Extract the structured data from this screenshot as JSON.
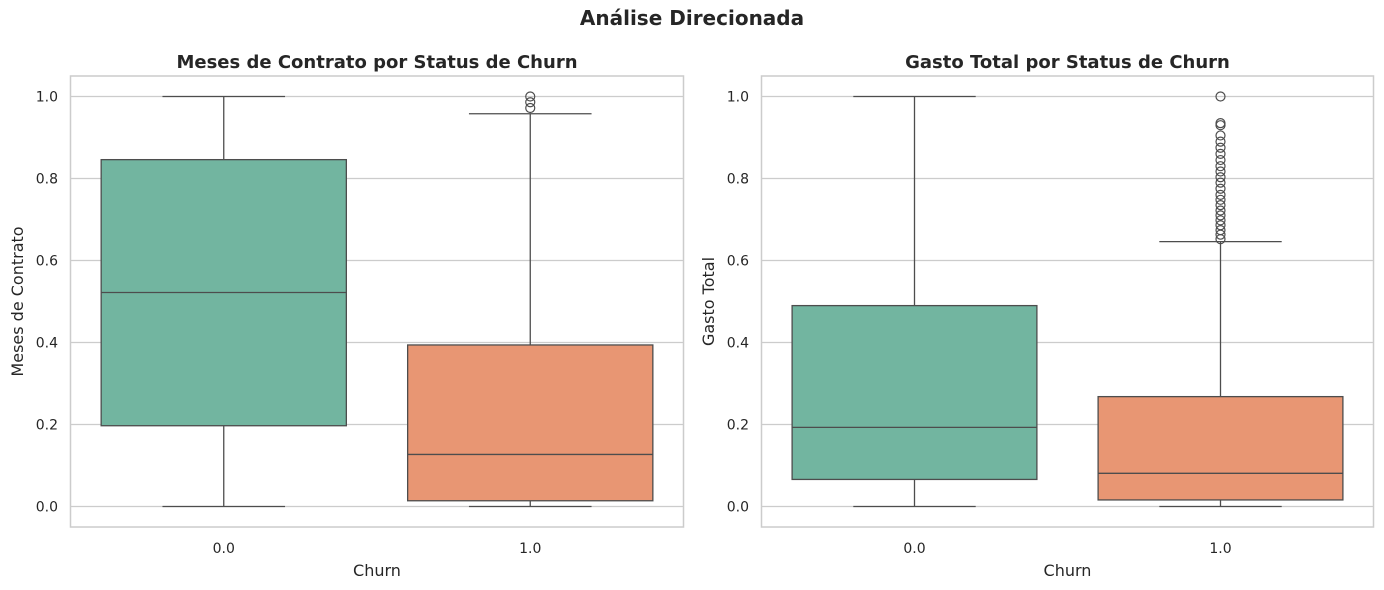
{
  "suptitle": "Análise Direcionada",
  "colors": {
    "0.0": "#72b5a0",
    "1.0": "#e89673"
  },
  "chart_data": [
    {
      "type": "box",
      "title": "Meses de Contrato por Status de Churn",
      "xlabel": "Churn",
      "ylabel": "Meses de Contrato",
      "categories": [
        "0.0",
        "1.0"
      ],
      "ylim": [
        -0.05,
        1.05
      ],
      "yticks": [
        0.0,
        0.2,
        0.4,
        0.6,
        0.8,
        1.0
      ],
      "ytick_labels": [
        "0.0",
        "0.2",
        "0.4",
        "0.6",
        "0.8",
        "1.0"
      ],
      "grid": true,
      "boxes": [
        {
          "category": "0.0",
          "whisker_low": 0.0,
          "q1": 0.197,
          "median": 0.522,
          "q3": 0.846,
          "whisker_high": 1.0,
          "fliers": []
        },
        {
          "category": "1.0",
          "whisker_low": 0.0,
          "q1": 0.014,
          "median": 0.127,
          "q3": 0.394,
          "whisker_high": 0.958,
          "fliers": [
            0.972,
            0.986,
            1.0
          ]
        }
      ]
    },
    {
      "type": "box",
      "title": "Gasto Total por Status de Churn",
      "xlabel": "Churn",
      "ylabel": "Gasto Total",
      "categories": [
        "0.0",
        "1.0"
      ],
      "ylim": [
        -0.05,
        1.05
      ],
      "yticks": [
        0.0,
        0.2,
        0.4,
        0.6,
        0.8,
        1.0
      ],
      "ytick_labels": [
        "0.0",
        "0.2",
        "0.4",
        "0.6",
        "0.8",
        "1.0"
      ],
      "grid": true,
      "boxes": [
        {
          "category": "0.0",
          "whisker_low": 0.0,
          "q1": 0.066,
          "median": 0.193,
          "q3": 0.49,
          "whisker_high": 1.0,
          "fliers": []
        },
        {
          "category": "1.0",
          "whisker_low": 0.0,
          "q1": 0.016,
          "median": 0.081,
          "q3": 0.268,
          "whisker_high": 0.646,
          "fliers": [
            0.652,
            0.663,
            0.674,
            0.686,
            0.698,
            0.71,
            0.722,
            0.735,
            0.748,
            0.76,
            0.775,
            0.79,
            0.803,
            0.817,
            0.83,
            0.845,
            0.86,
            0.875,
            0.89,
            0.905,
            0.93,
            0.935,
            1.0
          ]
        }
      ]
    }
  ]
}
